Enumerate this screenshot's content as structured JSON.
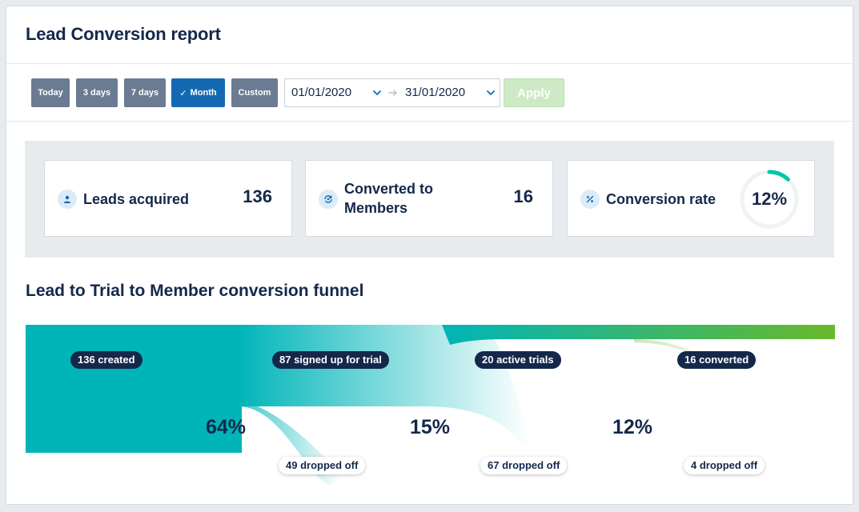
{
  "report": {
    "title": "Lead Conversion report"
  },
  "filters": {
    "ranges": [
      "Today",
      "3 days",
      "7 days",
      "Month",
      "Custom"
    ],
    "active": "Month",
    "date_from": "01/01/2020",
    "date_to": "31/01/2020",
    "apply_label": "Apply"
  },
  "stats": {
    "leads_label": "Leads acquired",
    "leads_value": "136",
    "converted_label_1": "Converted to",
    "converted_label_2": "Members",
    "converted_value": "16",
    "rate_label": "Conversion rate",
    "rate_value": "12%",
    "rate_fraction": 0.12
  },
  "funnel": {
    "title": "Lead to Trial to Member conversion funnel",
    "stages": [
      {
        "label": "136 created",
        "count": 136
      },
      {
        "label": "87 signed up for trial",
        "count": 87
      },
      {
        "label": "20 active trials",
        "count": 20
      },
      {
        "label": "16 converted",
        "count": 16
      }
    ],
    "rates": [
      "64%",
      "15%",
      "12%"
    ],
    "dropoffs": [
      "49 dropped off",
      "67 dropped off",
      "4 dropped off"
    ]
  },
  "colors": {
    "teal": "#00b5b8",
    "green": "#6ab82c",
    "navy": "#14284b",
    "primary": "#1569b3",
    "ring_track": "#f0f2f4"
  }
}
